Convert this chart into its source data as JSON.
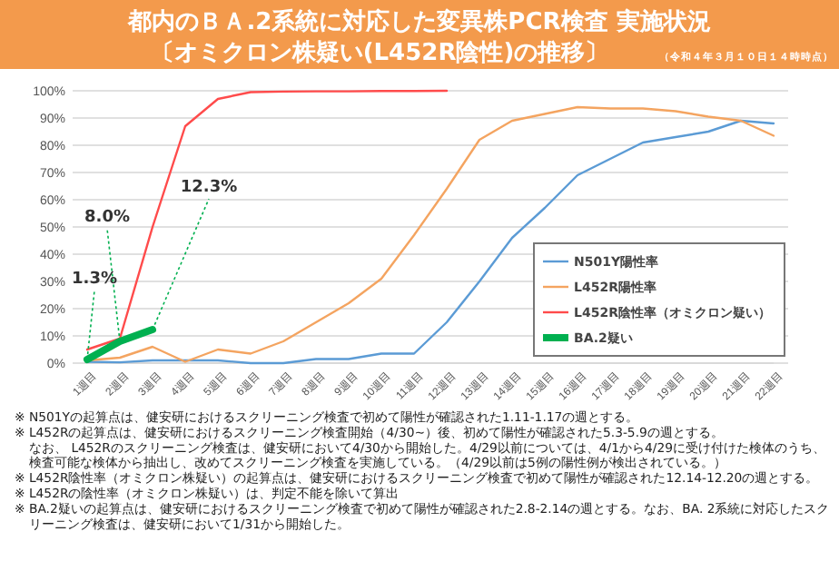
{
  "chart_data": {
    "type": "line",
    "title": "都内のＢＡ.2系統に対応した変異株PCR検査 実施状況",
    "subtitle": "〔オミクロン株疑い(L452R陰性)の推移〕",
    "categories": [
      "1週目",
      "2週目",
      "3週目",
      "4週目",
      "5週目",
      "6週目",
      "7週目",
      "8週目",
      "9週目",
      "10週目",
      "11週目",
      "12週目",
      "13週目",
      "14週目",
      "15週目",
      "16週目",
      "17週目",
      "18週目",
      "19週目",
      "20週目",
      "21週目",
      "22週目"
    ],
    "series": [
      {
        "name": "N501Y陽性率",
        "color": "#5b9bd5",
        "values": [
          0.5,
          0.3,
          1,
          1,
          1,
          0,
          0,
          1.5,
          1.5,
          3.5,
          3.5,
          15,
          30,
          46,
          57,
          69,
          75,
          81,
          83,
          85,
          89,
          88
        ]
      },
      {
        "name": "L452R陽性率",
        "color": "#f4a460",
        "values": [
          1,
          2,
          6,
          0.5,
          5,
          3.5,
          8,
          15,
          22,
          31,
          47,
          64,
          82,
          89,
          91.5,
          94,
          93.5,
          93.5,
          92.5,
          90.5,
          89,
          83.5
        ]
      },
      {
        "name": "L452R陰性率（オミクロン疑い）",
        "color": "#ff4b4b",
        "values": [
          5,
          9,
          50,
          87,
          97,
          99.5,
          99.7,
          99.8,
          99.8,
          99.9,
          99.9,
          100,
          null,
          null,
          null,
          null,
          null,
          null,
          null,
          null,
          null,
          null
        ]
      },
      {
        "name": "BA.2疑い",
        "color": "#00b050",
        "values": [
          1.3,
          8.0,
          12.3,
          null,
          null,
          null,
          null,
          null,
          null,
          null,
          null,
          null,
          null,
          null,
          null,
          null,
          null,
          null,
          null,
          null,
          null,
          null
        ],
        "value_labels": [
          "1.3%",
          "8.0%",
          "12.3%",
          null,
          null,
          null,
          null,
          null,
          null,
          null,
          null,
          null,
          null,
          null,
          null,
          null,
          null,
          null,
          null,
          null,
          null,
          null
        ]
      }
    ],
    "ylim": [
      0,
      100
    ],
    "yticks": [
      {
        "value": 0,
        "label": "0%"
      },
      {
        "value": 10,
        "label": "10%"
      },
      {
        "value": 20,
        "label": "20%"
      },
      {
        "value": 30,
        "label": "30%"
      },
      {
        "value": 40,
        "label": "40%"
      },
      {
        "value": 50,
        "label": "50%"
      },
      {
        "value": 60,
        "label": "60%"
      },
      {
        "value": 70,
        "label": "70%"
      },
      {
        "value": 80,
        "label": "80%"
      },
      {
        "value": 90,
        "label": "90%"
      },
      {
        "value": 100,
        "label": "100%"
      }
    ],
    "grid": "y",
    "legend": "right",
    "marker": "none",
    "line_style": "solid",
    "annotations": [
      "（令和４年３月１０日１４時時点）",
      "※ N501Yの起算点は、健安研におけるスクリーニング検査で初めて陽性が確認された1.11-1.17の週とする。",
      "※ L452Rの起算点は、健安研におけるスクリーニング検査開始（4/30~）後、初めて陽性が確認された5.3-5.9の週とする。",
      "なお、 L452Rのスクリーニング検査は、健安研において4/30から開始した。4/29以前については、4/1から4/29に受け付けた検体のうち、",
      "検査可能な検体から抽出し、改めてスクリーニング検査を実施している。（4/29以前は5例の陽性例が検出されている。）",
      "※ L452R陰性率（オミクロン株疑い）の起算点は、健安研におけるスクリーニング検査で初めて陽性が確認された12.14-12.20の週とする。",
      "※ L452Rの陰性率（オミクロン株疑い）は、判定不能を除いて算出",
      "※ BA.2疑いの起算点は、健安研におけるスクリーニング検査で初めて陽性が確認された2.8-2.14の週とする。なお、BA. 2系統に対応したスク",
      "リーニング検査は、健安研において1/31から開始した。"
    ]
  }
}
